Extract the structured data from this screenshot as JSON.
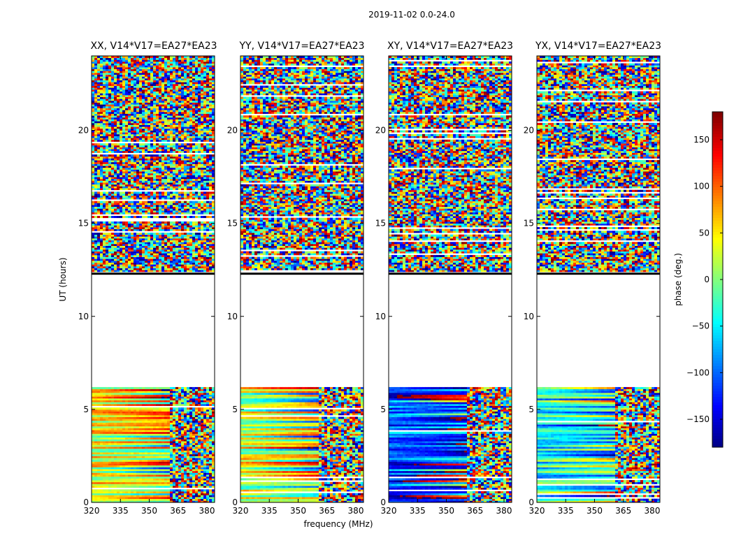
{
  "figure": {
    "suptitle": "2019-11-02 0.0-24.0",
    "ylabel": "UT (hours)",
    "xlabel": "frequency (MHz)",
    "colorbar_label": "phase (deg.)"
  },
  "chart_data": {
    "type": "heatmap",
    "x_ticks": [
      "320",
      "335",
      "350",
      "365",
      "380"
    ],
    "x_tick_values": [
      320,
      335,
      350,
      365,
      380
    ],
    "xlim": [
      320,
      384
    ],
    "y_ticks": [
      "0",
      "5",
      "10",
      "15",
      "20"
    ],
    "y_tick_values": [
      0,
      5,
      10,
      15,
      20
    ],
    "ylim": [
      0,
      24
    ],
    "no_data_ranges_ut": [
      [
        6.1,
        12.3
      ]
    ],
    "colorbar": {
      "ticks": [
        "150",
        "100",
        "50",
        "0",
        "−50",
        "−100",
        "−150"
      ],
      "tick_values": [
        150,
        100,
        50,
        0,
        -50,
        -100,
        -150
      ],
      "range": [
        -180,
        180
      ],
      "colormap": "jet"
    },
    "panels": [
      {
        "title": "XX, V14*V17=EA27*EA23",
        "seed": 11,
        "low_phase": 40
      },
      {
        "title": "YY, V14*V17=EA27*EA23",
        "seed": 23,
        "low_phase": 30
      },
      {
        "title": "XY, V14*V17=EA27*EA23",
        "seed": 37,
        "low_phase": -110
      },
      {
        "title": "YX, V14*V17=EA27*EA23",
        "seed": 51,
        "low_phase": -40
      }
    ]
  }
}
